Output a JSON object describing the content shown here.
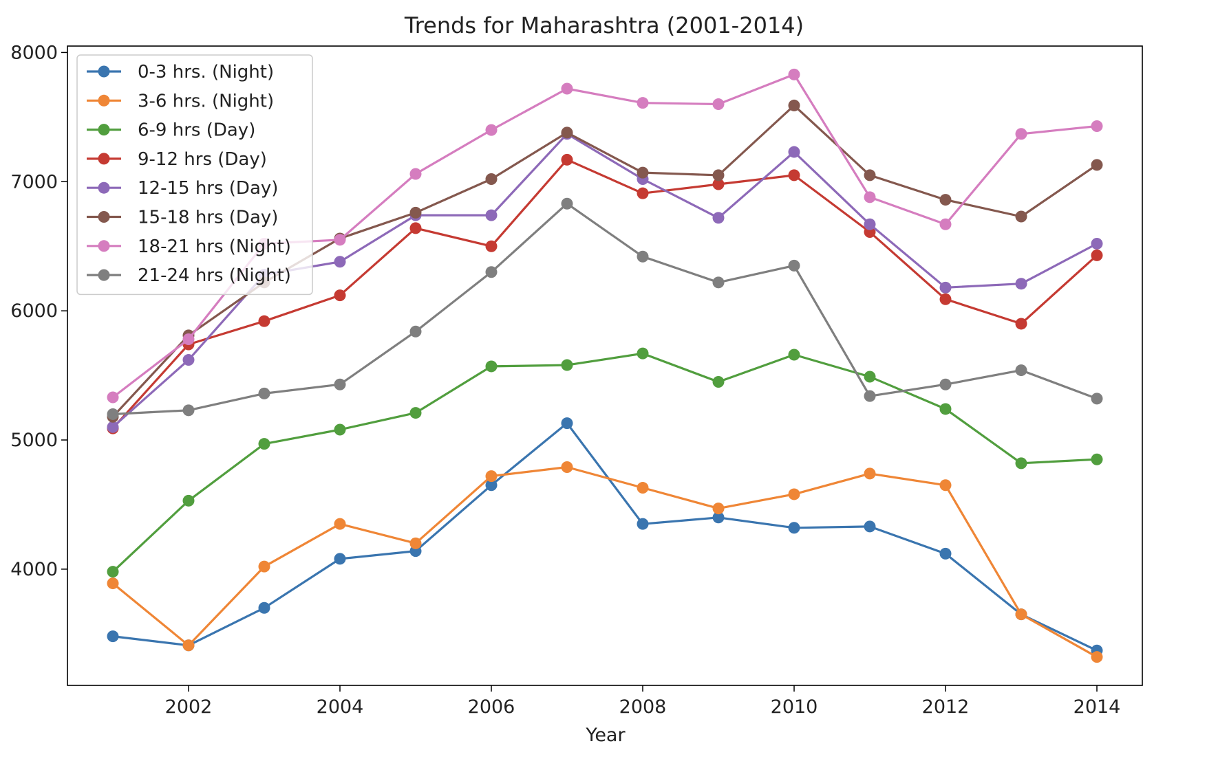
{
  "chart_data": {
    "type": "line",
    "title": "Trends for Maharashtra (2001-2014)",
    "xlabel": "Year",
    "ylabel": "",
    "x": [
      2001,
      2002,
      2003,
      2004,
      2005,
      2006,
      2007,
      2008,
      2009,
      2010,
      2011,
      2012,
      2013,
      2014
    ],
    "xlim": [
      2000.4,
      2014.6
    ],
    "ylim": [
      3100,
      8050
    ],
    "x_ticks": [
      2002,
      2004,
      2006,
      2008,
      2010,
      2012,
      2014
    ],
    "y_ticks": [
      4000,
      5000,
      6000,
      7000,
      8000
    ],
    "grid": false,
    "legend_position": "upper-left",
    "series": [
      {
        "name": "0-3 hrs. (Night)",
        "color": "#3a75af",
        "values": [
          3480,
          3410,
          3700,
          4080,
          4140,
          4650,
          5130,
          4350,
          4400,
          4320,
          4330,
          4120,
          3650,
          3370
        ]
      },
      {
        "name": "3-6 hrs. (Night)",
        "color": "#ef8636",
        "values": [
          3890,
          3410,
          4020,
          4350,
          4200,
          4720,
          4790,
          4630,
          4470,
          4580,
          4740,
          4650,
          3650,
          3320
        ]
      },
      {
        "name": "6-9 hrs (Day)",
        "color": "#519e3e",
        "values": [
          3980,
          4530,
          4970,
          5080,
          5210,
          5570,
          5580,
          5670,
          5450,
          5660,
          5490,
          5240,
          4820,
          4850
        ]
      },
      {
        "name": "9-12 hrs (Day)",
        "color": "#c53a32",
        "values": [
          5090,
          5740,
          5920,
          6120,
          6640,
          6500,
          7170,
          6910,
          6980,
          7050,
          6610,
          6090,
          5900,
          6430
        ]
      },
      {
        "name": "12-15 hrs (Day)",
        "color": "#8d69b8",
        "values": [
          5100,
          5620,
          6280,
          6380,
          6740,
          6740,
          7370,
          7020,
          6720,
          7230,
          6670,
          6180,
          6210,
          6520
        ]
      },
      {
        "name": "15-18 hrs (Day)",
        "color": "#84584e",
        "values": [
          5180,
          5810,
          6220,
          6560,
          6760,
          7020,
          7380,
          7070,
          7050,
          7590,
          7050,
          6860,
          6730,
          7130
        ]
      },
      {
        "name": "18-21 hrs (Night)",
        "color": "#d57dbf",
        "values": [
          5330,
          5780,
          6520,
          6550,
          7060,
          7400,
          7720,
          7610,
          7600,
          7830,
          6880,
          6670,
          7370,
          7430
        ]
      },
      {
        "name": "21-24 hrs (Night)",
        "color": "#7f7f7f",
        "values": [
          5200,
          5230,
          5360,
          5430,
          5840,
          6300,
          6830,
          6420,
          6220,
          6350,
          5340,
          5430,
          5540,
          5320
        ]
      }
    ]
  }
}
